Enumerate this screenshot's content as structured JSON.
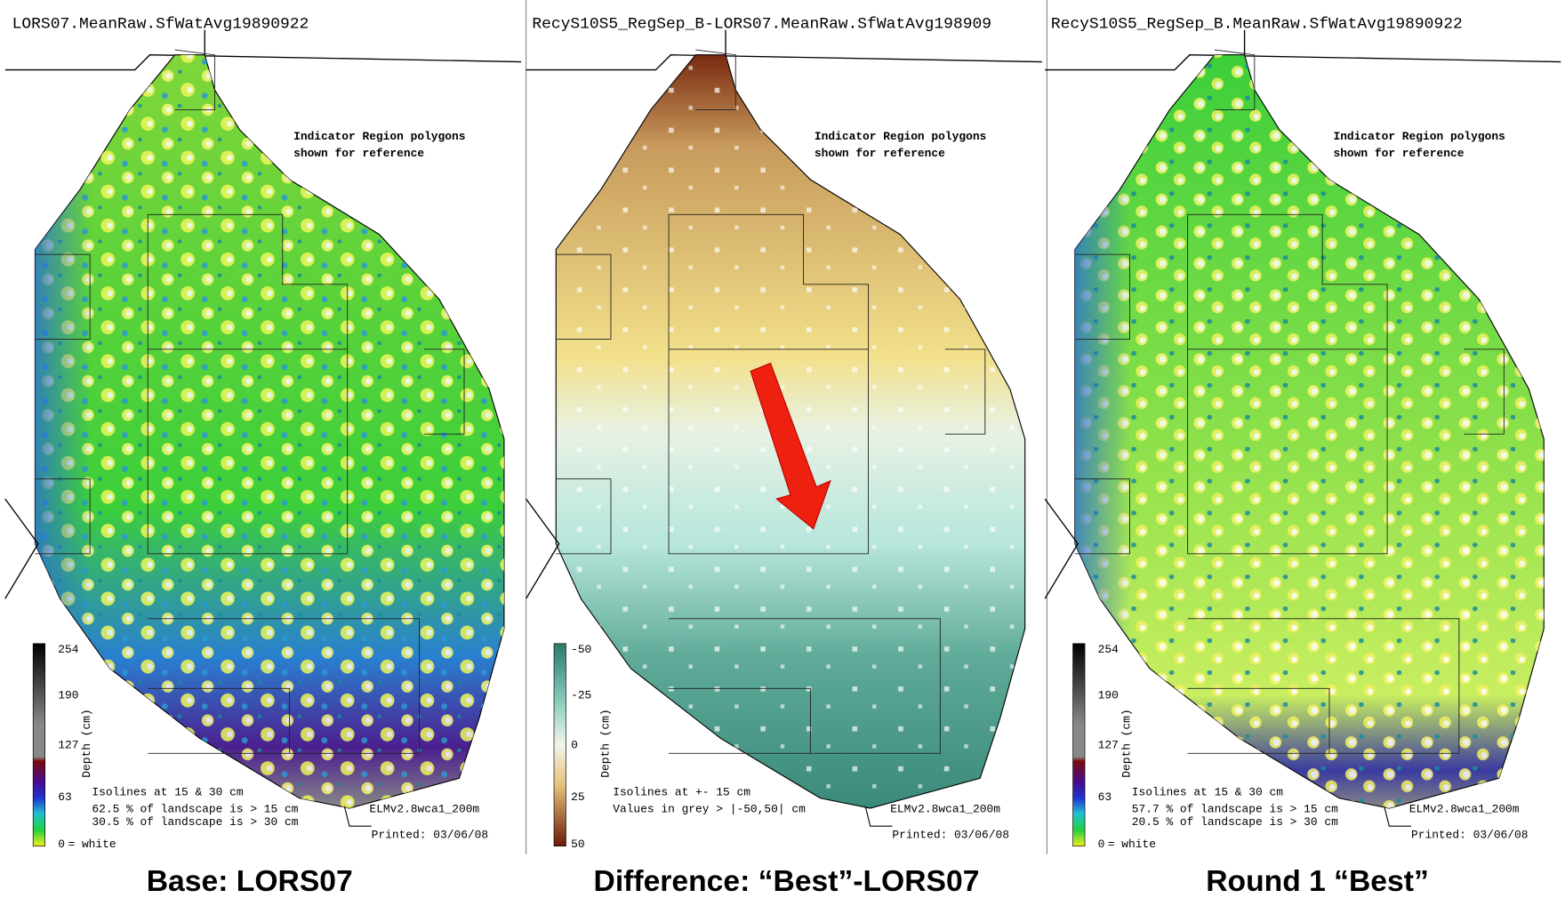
{
  "panels": [
    {
      "header": "LORS07.MeanRaw.SfWatAvg19890922",
      "note": [
        "Indicator Region polygons",
        "shown for reference"
      ],
      "legend": {
        "ticks": [
          "254",
          "190",
          "127",
          "63",
          "0"
        ],
        "white_note": "= white",
        "axis_label": "Depth (cm)"
      },
      "stats": [
        "Isolines at 15 & 30 cm",
        "62.5 % of landscape is > 15 cm",
        "30.5 % of landscape is > 30 cm"
      ],
      "model": "ELMv2.8wca1_200m",
      "printed": "Printed: 03/06/08",
      "caption": "Base: LORS07"
    },
    {
      "header": "RecyS10S5_RegSep_B-LORS07.MeanRaw.SfWatAvg198909",
      "note": [
        "Indicator Region polygons",
        "shown for reference"
      ],
      "legend": {
        "ticks": [
          "-50",
          "-25",
          "0",
          "25",
          "50"
        ],
        "axis_label": "Depth (cm)"
      },
      "stats": [
        "Isolines at +- 15 cm",
        "Values in grey > |-50,50| cm"
      ],
      "model": "ELMv2.8wca1_200m",
      "printed": "Printed: 03/06/08",
      "caption": "Difference: “Best”-LORS07"
    },
    {
      "header": "RecyS10S5_RegSep_B.MeanRaw.SfWatAvg19890922",
      "note": [
        "Indicator Region polygons",
        "shown for reference"
      ],
      "legend": {
        "ticks": [
          "254",
          "190",
          "127",
          "63",
          "0"
        ],
        "white_note": "= white",
        "axis_label": "Depth (cm)"
      },
      "stats": [
        "Isolines at 15 & 30 cm",
        "57.7 % of landscape is > 15 cm",
        "20.5 % of landscape is > 30 cm"
      ],
      "model": "ELMv2.8wca1_200m",
      "printed": "Printed: 03/06/08",
      "caption": "Round 1 “Best”"
    }
  ]
}
